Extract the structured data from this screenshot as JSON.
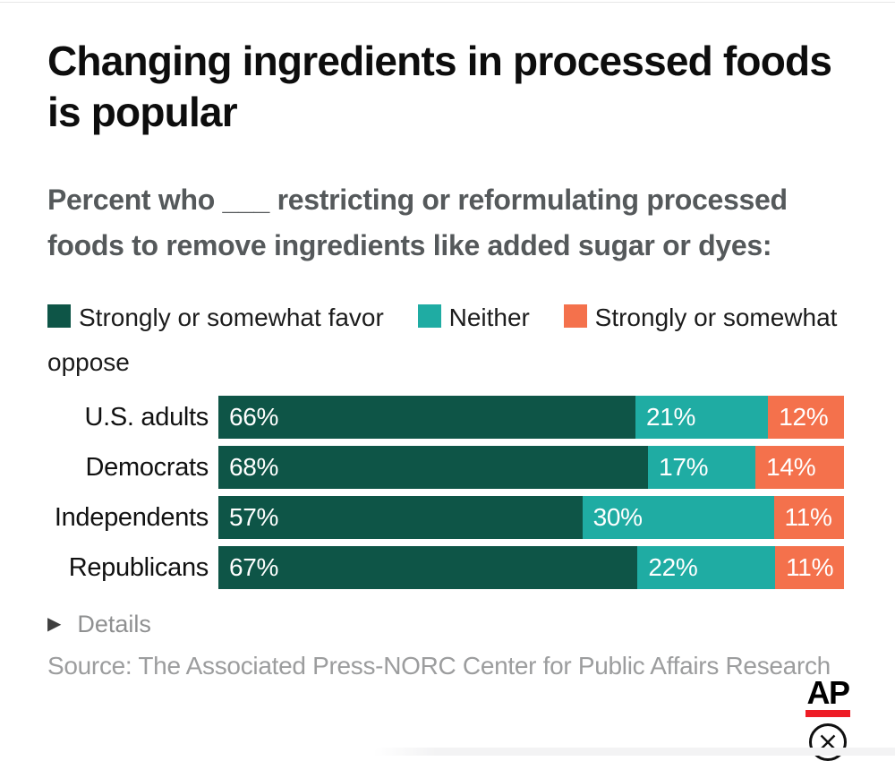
{
  "title": "Changing ingredients in processed foods is popular",
  "subtitle": "Percent who ___ restricting or reformulating processed foods to remove ingredients like added sugar or dyes:",
  "legend": [
    {
      "label": "Strongly or somewhat favor",
      "color": "#0e5547"
    },
    {
      "label": "Neither",
      "color": "#1faca3"
    },
    {
      "label": "Strongly or somewhat oppose",
      "color": "#f4714c"
    }
  ],
  "chart_data": {
    "type": "bar",
    "orientation": "horizontal",
    "stacked": true,
    "categories": [
      "U.S. adults",
      "Democrats",
      "Independents",
      "Republicans"
    ],
    "series": [
      {
        "name": "Strongly or somewhat favor",
        "color": "#0e5547",
        "values": [
          66,
          68,
          57,
          67
        ]
      },
      {
        "name": "Neither",
        "color": "#1faca3",
        "values": [
          21,
          17,
          30,
          22
        ]
      },
      {
        "name": "Strongly or somewhat oppose",
        "color": "#f4714c",
        "values": [
          12,
          14,
          11,
          11
        ]
      }
    ],
    "value_label_format": "{v}%",
    "legend_position": "top",
    "grid": false
  },
  "details_label": "Details",
  "source": "Source: The Associated Press-NORC Center for Public Affairs Research",
  "ap_logo": {
    "text": "AP",
    "bar_color": "#ee1c25"
  },
  "icons": {
    "details_triangle": "▶",
    "close_x": "close-x"
  }
}
